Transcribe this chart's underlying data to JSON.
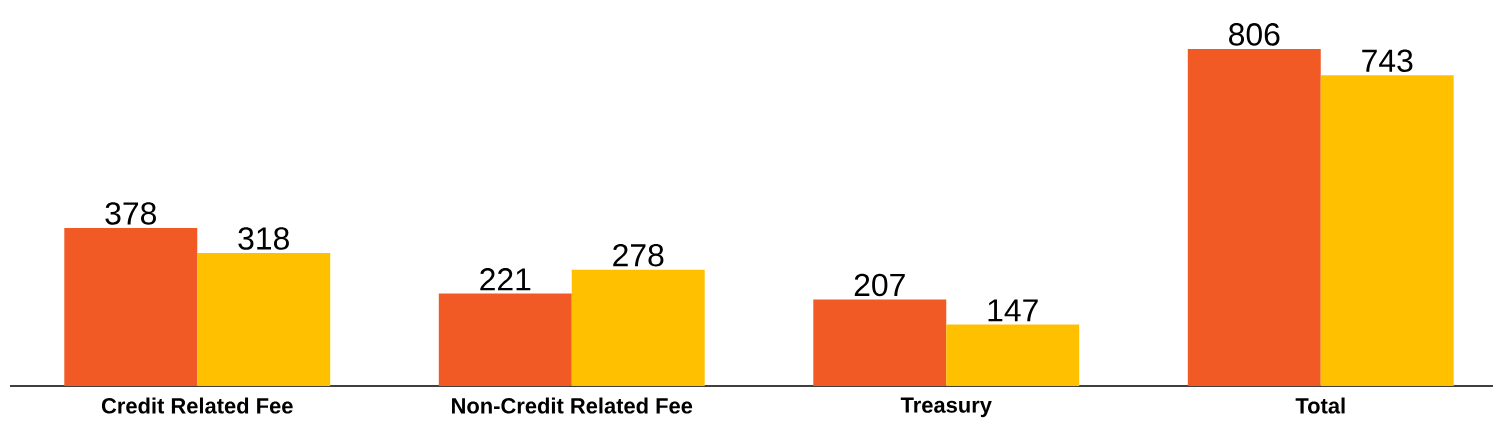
{
  "chart_data": {
    "type": "bar",
    "categories": [
      "Credit Related Fee",
      "Non-Credit Related Fee",
      "Treasury",
      "Total"
    ],
    "series": [
      {
        "color": "#f15a24",
        "values": [
          378,
          221,
          207,
          806
        ]
      },
      {
        "color": "#ffc000",
        "values": [
          318,
          278,
          147,
          743
        ]
      }
    ],
    "data_labels": true,
    "tick_labels": "x"
  }
}
